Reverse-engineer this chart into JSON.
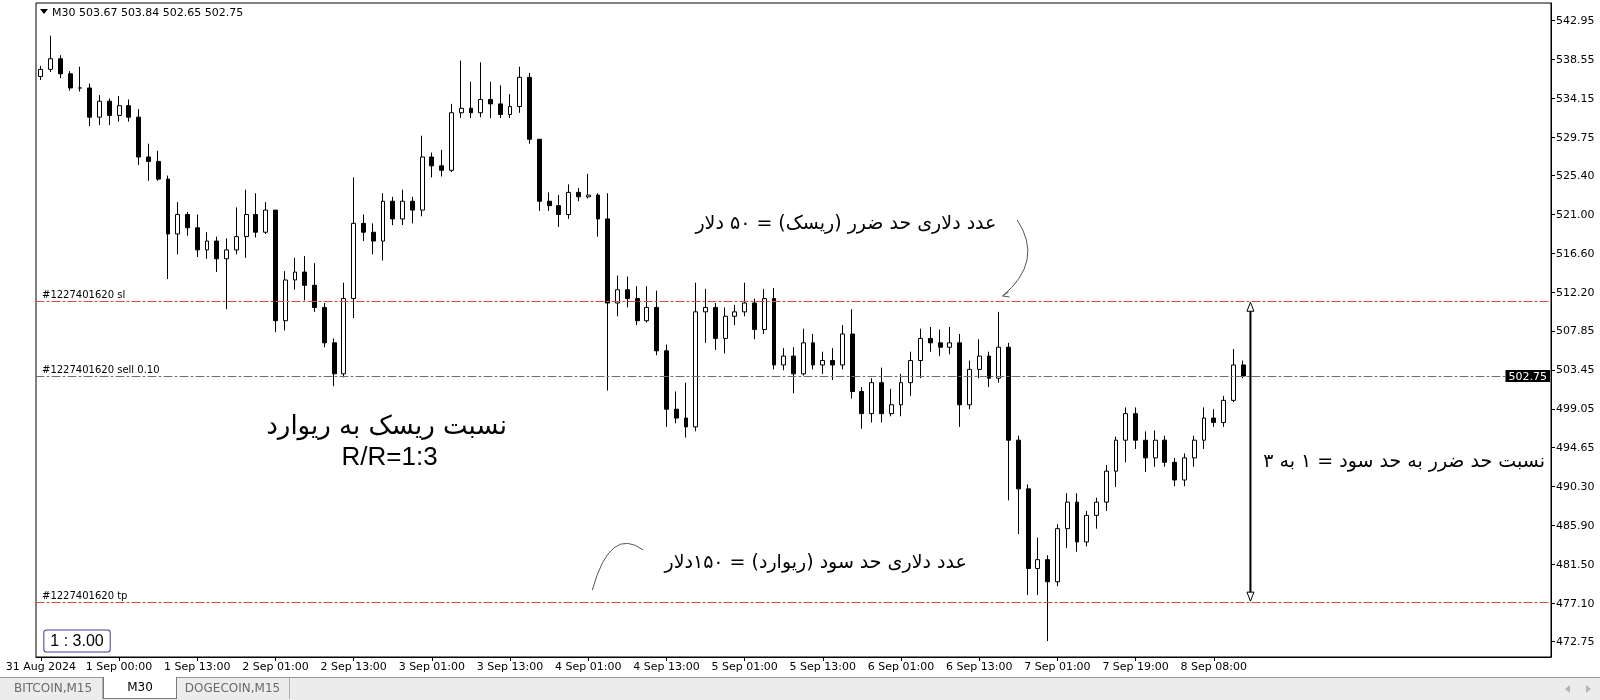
{
  "chart_data": {
    "type": "candlestick",
    "color": "#000000",
    "categories": [
      "31 Aug 2024",
      null,
      null,
      null,
      null,
      null,
      null,
      null,
      "1 Sep 00:00",
      null,
      null,
      null,
      null,
      null,
      null,
      null,
      "1 Sep 13:00",
      null,
      null,
      null,
      null,
      null,
      null,
      null,
      "2 Sep 01:00",
      null,
      null,
      null,
      null,
      null,
      null,
      null,
      "2 Sep 13:00",
      null,
      null,
      null,
      null,
      null,
      null,
      null,
      "3 Sep 01:00",
      null,
      null,
      null,
      null,
      null,
      null,
      null,
      "3 Sep 13:00",
      null,
      null,
      null,
      null,
      null,
      null,
      null,
      "4 Sep 01:00",
      null,
      null,
      null,
      null,
      null,
      null,
      null,
      "4 Sep 13:00",
      null,
      null,
      null,
      null,
      null,
      null,
      null,
      "5 Sep 01:00",
      null,
      null,
      null,
      null,
      null,
      null,
      null,
      "5 Sep 13:00",
      null,
      null,
      null,
      null,
      null,
      null,
      null,
      "6 Sep 01:00",
      null,
      null,
      null,
      null,
      null,
      null,
      null,
      "6 Sep 13:00",
      null,
      null,
      null,
      null,
      null,
      null,
      null,
      "7 Sep 01:00",
      null,
      null,
      null,
      null,
      null,
      null,
      null,
      "7 Sep 19:00",
      null,
      null,
      null,
      null,
      null,
      null,
      null,
      "8 Sep 08:00",
      null,
      null,
      null,
      null,
      null,
      null,
      null,
      null,
      null,
      null,
      null,
      null,
      null,
      null,
      null,
      null,
      null,
      null,
      null,
      null,
      null,
      null,
      null,
      null,
      null,
      null,
      null,
      null,
      null,
      null,
      null,
      null,
      null,
      null
    ],
    "ohlc": [
      [
        536.6,
        537.8,
        536.2,
        537.4
      ],
      [
        537.4,
        541.2,
        537.1,
        538.6
      ],
      [
        538.6,
        539.0,
        536.4,
        536.9
      ],
      [
        536.9,
        537.2,
        535.0,
        535.3
      ],
      [
        535.3,
        537.7,
        534.9,
        535.3
      ],
      [
        535.3,
        535.8,
        531.0,
        532.0
      ],
      [
        532.0,
        534.5,
        531.1,
        533.8
      ],
      [
        533.8,
        534.1,
        531.1,
        532.2
      ],
      [
        532.2,
        534.4,
        531.5,
        533.3
      ],
      [
        533.3,
        534.0,
        531.5,
        532.0
      ],
      [
        532.0,
        532.9,
        526.6,
        527.5
      ],
      [
        527.5,
        529.0,
        524.8,
        527.0
      ],
      [
        527.0,
        528.2,
        524.8,
        525.0
      ],
      [
        525.0,
        525.4,
        513.7,
        518.8
      ],
      [
        518.8,
        522.4,
        516.5,
        521.0
      ],
      [
        521.0,
        521.3,
        518.6,
        519.5
      ],
      [
        519.5,
        521.0,
        516.2,
        517.0
      ],
      [
        517.0,
        519.0,
        516.0,
        518.0
      ],
      [
        518.0,
        518.5,
        514.5,
        516.0
      ],
      [
        516.0,
        518.3,
        510.3,
        517.0
      ],
      [
        517.0,
        521.8,
        516.5,
        518.5
      ],
      [
        518.5,
        523.8,
        516.1,
        521.0
      ],
      [
        521.0,
        523.4,
        518.4,
        519.0
      ],
      [
        519.0,
        522.4,
        518.8,
        521.5
      ],
      [
        521.5,
        521.5,
        507.7,
        509.0
      ],
      [
        509.0,
        514.6,
        507.9,
        513.6
      ],
      [
        513.6,
        516.1,
        512.5,
        514.5
      ],
      [
        514.5,
        516.3,
        511.3,
        513.0
      ],
      [
        513.0,
        515.5,
        510.0,
        510.5
      ],
      [
        510.5,
        511.0,
        506.0,
        506.5
      ],
      [
        506.5,
        507.0,
        501.6,
        503.0
      ],
      [
        503.0,
        513.3,
        502.6,
        511.5
      ],
      [
        511.5,
        525.2,
        509.3,
        520.0
      ],
      [
        520.0,
        521.0,
        518.0,
        519.0
      ],
      [
        519.0,
        520.0,
        516.5,
        518.0
      ],
      [
        518.0,
        523.4,
        515.8,
        522.5
      ],
      [
        522.5,
        523.0,
        519.8,
        520.5
      ],
      [
        520.5,
        523.8,
        519.8,
        522.5
      ],
      [
        522.5,
        523.0,
        520.0,
        521.5
      ],
      [
        521.5,
        529.9,
        520.8,
        527.5
      ],
      [
        527.5,
        528.0,
        525.2,
        526.5
      ],
      [
        526.5,
        528.3,
        525.3,
        526.0
      ],
      [
        526.0,
        533.5,
        525.8,
        532.5
      ],
      [
        532.5,
        538.4,
        531.9,
        533.0
      ],
      [
        533.0,
        536.0,
        531.9,
        532.5
      ],
      [
        532.5,
        538.2,
        532.0,
        534.0
      ],
      [
        534.0,
        536.0,
        531.9,
        533.5
      ],
      [
        533.5,
        535.6,
        531.9,
        532.3
      ],
      [
        532.3,
        534.6,
        531.9,
        533.2
      ],
      [
        533.2,
        537.7,
        532.5,
        536.5
      ],
      [
        536.5,
        537.0,
        529.0,
        529.5
      ],
      [
        529.5,
        529.5,
        521.4,
        522.5
      ],
      [
        522.5,
        523.5,
        521.4,
        522.0
      ],
      [
        522.0,
        523.2,
        519.6,
        521.0
      ],
      [
        521.0,
        524.4,
        520.5,
        523.5
      ],
      [
        523.5,
        524.0,
        522.5,
        523.0
      ],
      [
        523.0,
        525.6,
        522.8,
        523.2
      ],
      [
        523.2,
        523.4,
        518.5,
        520.5
      ],
      [
        520.5,
        523.4,
        501.1,
        511.0
      ],
      [
        511.0,
        514.1,
        509.5,
        512.5
      ],
      [
        512.5,
        514.0,
        510.5,
        511.5
      ],
      [
        511.5,
        512.9,
        508.5,
        509.0
      ],
      [
        509.0,
        512.9,
        508.8,
        510.5
      ],
      [
        510.5,
        512.4,
        505.1,
        505.6
      ],
      [
        505.6,
        506.3,
        497.0,
        499.0
      ],
      [
        499.0,
        501.0,
        497.4,
        498.0
      ],
      [
        498.0,
        502.0,
        495.8,
        497.0
      ],
      [
        497.0,
        513.3,
        496.5,
        510.0
      ],
      [
        510.0,
        512.6,
        506.5,
        510.5
      ],
      [
        510.5,
        511.0,
        505.7,
        507.0
      ],
      [
        507.0,
        510.5,
        505.3,
        509.5
      ],
      [
        509.5,
        510.8,
        508.5,
        510.0
      ],
      [
        510.0,
        513.3,
        509.5,
        511.0
      ],
      [
        511.0,
        511.5,
        506.9,
        508.0
      ],
      [
        508.0,
        512.6,
        507.5,
        511.5
      ],
      [
        511.5,
        512.7,
        503.5,
        504.0
      ],
      [
        504.0,
        505.9,
        503.4,
        505.0
      ],
      [
        505.0,
        506.0,
        500.8,
        503.0
      ],
      [
        503.0,
        508.1,
        502.8,
        506.5
      ],
      [
        506.5,
        507.5,
        503.5,
        504.0
      ],
      [
        504.0,
        505.5,
        503.0,
        504.5
      ],
      [
        504.5,
        505.9,
        502.3,
        504.0
      ],
      [
        504.0,
        508.5,
        503.5,
        507.5
      ],
      [
        507.5,
        510.3,
        500.2,
        501.0
      ],
      [
        501.0,
        501.5,
        496.8,
        498.5
      ],
      [
        498.5,
        502.5,
        497.5,
        502.0
      ],
      [
        502.0,
        503.7,
        497.5,
        498.5
      ],
      [
        498.5,
        501.3,
        498.2,
        499.5
      ],
      [
        499.5,
        503.0,
        498.2,
        502.0
      ],
      [
        502.0,
        505.5,
        500.5,
        504.5
      ],
      [
        504.5,
        508.1,
        502.5,
        507.0
      ],
      [
        507.0,
        508.3,
        505.5,
        506.5
      ],
      [
        506.5,
        508.0,
        505.0,
        506.0
      ],
      [
        506.0,
        508.3,
        505.2,
        506.5
      ],
      [
        506.5,
        507.5,
        497.0,
        499.5
      ],
      [
        499.5,
        504.5,
        499.0,
        503.5
      ],
      [
        503.5,
        506.9,
        502.5,
        505.0
      ],
      [
        505.0,
        505.5,
        501.5,
        502.5
      ],
      [
        502.5,
        510.0,
        502.0,
        506.0
      ],
      [
        506.0,
        506.5,
        488.7,
        495.5
      ],
      [
        495.5,
        496.0,
        484.9,
        490.0
      ],
      [
        490.0,
        490.5,
        478.0,
        481.0
      ],
      [
        481.0,
        484.5,
        478.0,
        482.0
      ],
      [
        482.0,
        482.5,
        472.8,
        479.5
      ],
      [
        479.5,
        486.0,
        479.0,
        485.5
      ],
      [
        485.5,
        489.5,
        483.3,
        488.5
      ],
      [
        488.5,
        489.5,
        482.9,
        484.0
      ],
      [
        484.0,
        487.5,
        483.5,
        487.0
      ],
      [
        487.0,
        489.0,
        485.5,
        488.5
      ],
      [
        488.5,
        492.7,
        487.5,
        492.0
      ],
      [
        492.0,
        495.9,
        490.2,
        495.5
      ],
      [
        495.5,
        499.2,
        493.0,
        498.5
      ],
      [
        498.5,
        499.2,
        494.5,
        495.5
      ],
      [
        495.5,
        496.5,
        491.9,
        493.5
      ],
      [
        493.5,
        496.6,
        492.5,
        495.5
      ],
      [
        495.5,
        496.0,
        492.5,
        493.0
      ],
      [
        493.0,
        493.5,
        490.3,
        491.0
      ],
      [
        491.0,
        494.0,
        490.3,
        493.5
      ],
      [
        493.5,
        496.0,
        492.5,
        495.5
      ],
      [
        495.5,
        499.2,
        494.5,
        498.0
      ],
      [
        498.0,
        499.0,
        497.0,
        497.5
      ],
      [
        497.5,
        500.5,
        497.0,
        500.0
      ],
      [
        500.0,
        505.8,
        499.8,
        504.0
      ],
      [
        504.0,
        504.5,
        502.5,
        502.75
      ],
      null,
      null,
      null,
      null,
      null,
      null,
      null,
      null,
      null,
      null,
      null,
      null,
      null,
      null,
      null,
      null,
      null,
      null,
      null,
      null,
      null,
      null,
      null,
      null,
      null,
      null,
      null,
      null,
      null,
      null,
      null
    ],
    "ylim": [
      471.0,
      544.9
    ],
    "yticks": [
      542.95,
      538.55,
      534.15,
      529.75,
      {
        "value": 525.4,
        "label": "525.40"
      },
      {
        "value": 521.0,
        "label": "521.00"
      },
      {
        "value": 516.6,
        "label": "516.60"
      },
      {
        "value": 512.2,
        "label": "512.20"
      },
      507.85,
      503.45,
      499.05,
      494.65,
      {
        "value": 490.3,
        "label": "490.30"
      },
      {
        "value": 485.9,
        "label": "485.90"
      },
      {
        "value": 481.5,
        "label": "481.50"
      },
      {
        "value": 477.1,
        "label": "477.10"
      },
      472.75
    ],
    "ref_lines": [
      {
        "axis": "y",
        "value": 511.2,
        "label": "#1227401620 sl",
        "color": "#c8553d",
        "line_style": "dashed"
      },
      {
        "axis": "y",
        "value": 502.75,
        "label": "#1227401620 sell 0.10",
        "color": "#6e6e6e",
        "line_style": "dashed"
      },
      {
        "axis": "y",
        "value": 477.2,
        "label": "#1227401620 tp",
        "color": "#c8553d",
        "line_style": "dashed"
      }
    ],
    "annotations": [
      "M30 503.67 503.84 502.65 502.75",
      "عدد دلاری حد ضرر (ریسک) = ۵۰ دلار",
      "نسبت ریسک به ریوارد",
      "R/R=1:3",
      "نسبت حد ضرر به حد سود = ۱ به ۳",
      "عدد دلاری حد سود (ریوارد) = ۱۵۰دلار",
      "1 : 3.00",
      {
        "text": "502.75",
        "y": 502.75
      },
      "BITCOIN,M15",
      "M30",
      "DOGECOIN,M15"
    ]
  }
}
